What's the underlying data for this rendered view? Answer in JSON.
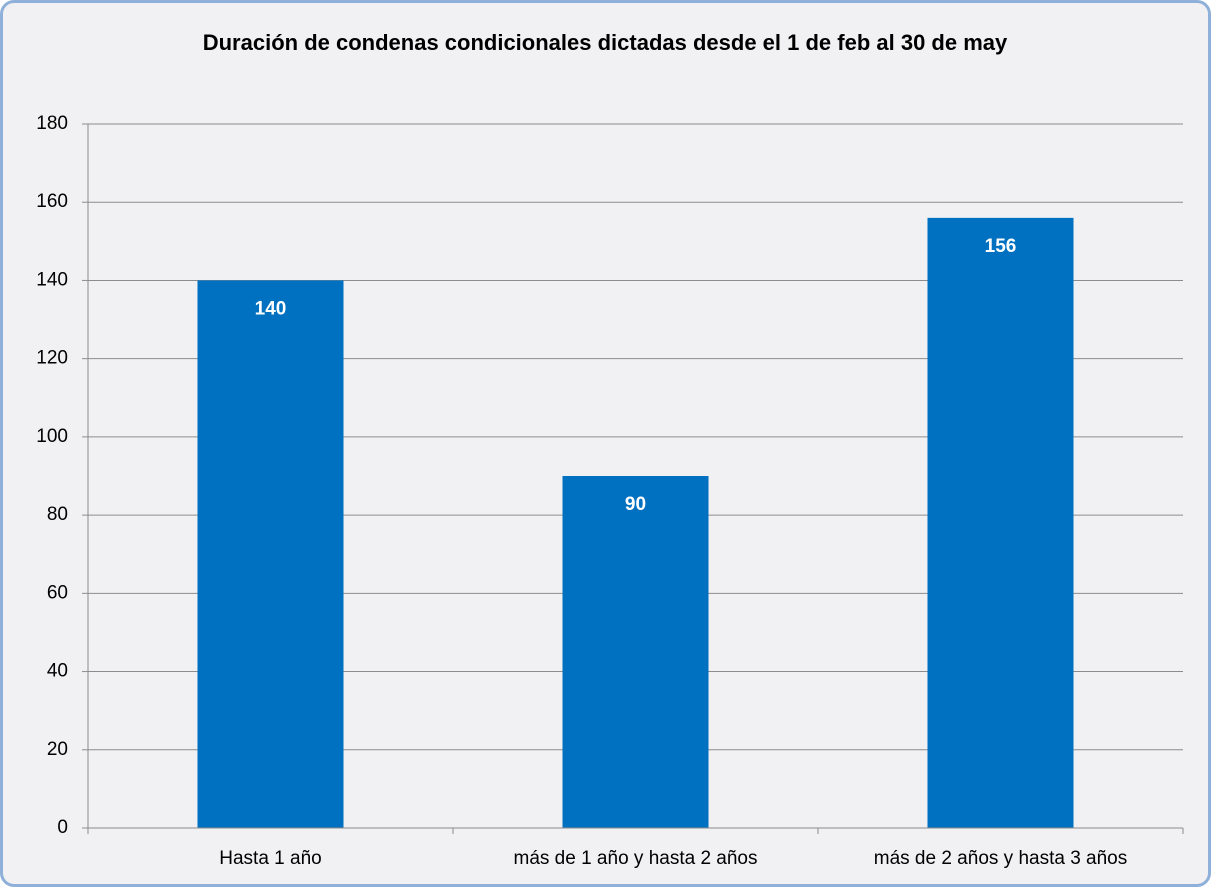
{
  "chart_data": {
    "type": "bar",
    "title": "Duración de condenas condicionales dictadas desde el 1 de feb al 30 de may",
    "categories": [
      "Hasta 1 año",
      "más de 1 año y hasta 2 años",
      "más de 2 años y hasta 3 años"
    ],
    "values": [
      140,
      90,
      156
    ],
    "color": "#0070c0",
    "ylim": [
      0,
      180
    ],
    "yticks": [
      0,
      20,
      40,
      60,
      80,
      100,
      120,
      140,
      160,
      180
    ],
    "grid": true
  }
}
